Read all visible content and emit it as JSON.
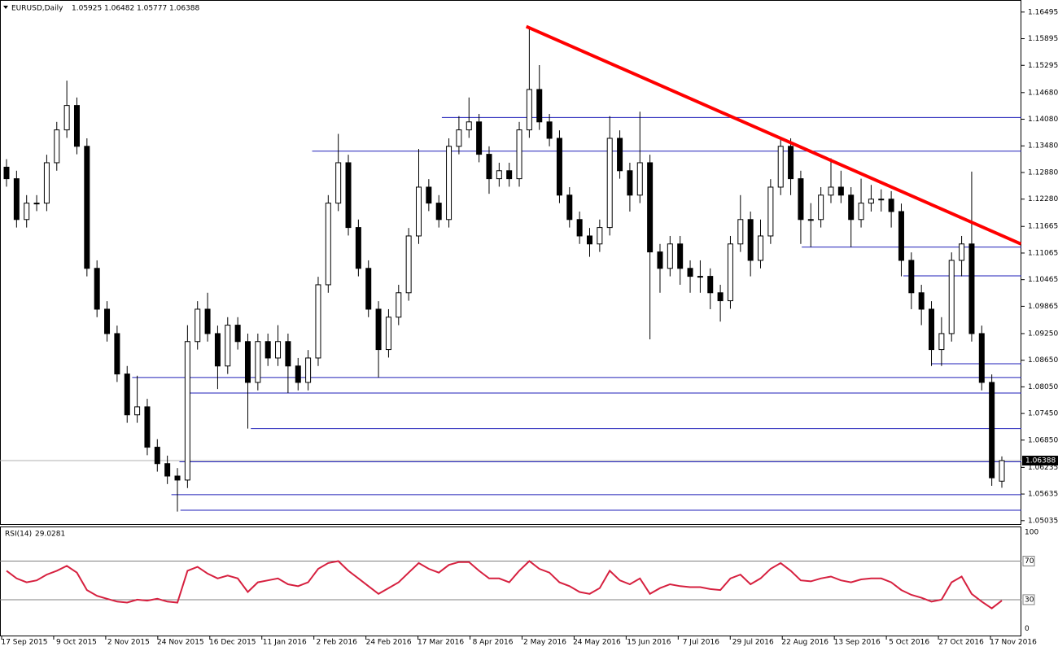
{
  "chart_data": {
    "type": "candlestick",
    "symbol": "EURUSD,Daily",
    "open": [
      1.13,
      1.1274,
      1.1182,
      1.1219,
      1.1219,
      1.131,
      1.1384,
      1.1439,
      1.1347,
      1.1072,
      1.098,
      1.0925,
      1.0834,
      1.0742,
      1.076,
      1.0669,
      1.0632,
      1.0604,
      1.0595,
      1.0907,
      1.098,
      1.0925,
      1.0852,
      1.0944,
      1.0907,
      1.0815,
      1.0907,
      1.087,
      1.0907,
      1.0852,
      1.0815,
      1.087,
      1.1035,
      1.1219,
      1.131,
      1.1164,
      1.1072,
      1.098,
      1.0889,
      1.0962,
      1.1017,
      1.1145,
      1.1255,
      1.1219,
      1.1182,
      1.1347,
      1.1384,
      1.1402,
      1.1329,
      1.1274,
      1.1292,
      1.1274,
      1.1384,
      1.1475,
      1.1402,
      1.1365,
      1.1237,
      1.1182,
      1.1145,
      1.1127,
      1.1164,
      1.1365,
      1.1292,
      1.1237,
      1.131,
      1.1109,
      1.1072,
      1.1127,
      1.1072,
      1.1054,
      1.1054,
      1.1017,
      1.0999,
      1.1127,
      1.1182,
      1.109,
      1.1145,
      1.1255,
      1.1347,
      1.1274,
      1.1182,
      1.1182,
      1.1237,
      1.1255,
      1.1237,
      1.1182,
      1.1219,
      1.1228,
      1.1228,
      1.12,
      1.109,
      1.1017,
      1.098,
      1.0889,
      1.0925,
      1.109,
      1.1127,
      1.0925,
      1.0815,
      1.05925
    ],
    "high": [
      1.1318,
      1.1292,
      1.1237,
      1.1237,
      1.1328,
      1.1402,
      1.1495,
      1.1457,
      1.1365,
      1.109,
      1.0998,
      1.0943,
      1.0852,
      1.083,
      1.0778,
      1.0687,
      1.065,
      1.0622,
      1.0944,
      1.0998,
      1.1017,
      1.0943,
      1.0962,
      1.0962,
      1.0925,
      1.0925,
      1.0925,
      1.0944,
      1.0925,
      1.087,
      1.0888,
      1.1053,
      1.1237,
      1.1375,
      1.1328,
      1.1182,
      1.109,
      1.0998,
      1.098,
      1.1035,
      1.1163,
      1.1341,
      1.1273,
      1.1237,
      1.1365,
      1.1415,
      1.1457,
      1.142,
      1.1347,
      1.131,
      1.131,
      1.1402,
      1.1617,
      1.153,
      1.142,
      1.1383,
      1.1255,
      1.12,
      1.1163,
      1.1182,
      1.1415,
      1.1383,
      1.131,
      1.1425,
      1.1328,
      1.1127,
      1.1145,
      1.1145,
      1.109,
      1.109,
      1.1072,
      1.1035,
      1.1145,
      1.1237,
      1.12,
      1.1182,
      1.1273,
      1.1365,
      1.1365,
      1.1292,
      1.1219,
      1.1255,
      1.132,
      1.1292,
      1.1255,
      1.1274,
      1.126,
      1.125,
      1.1246,
      1.1218,
      1.1108,
      1.1035,
      1.0998,
      1.0962,
      1.1108,
      1.1145,
      1.129,
      1.0943,
      1.0833,
      1.06482
    ],
    "low": [
      1.1256,
      1.1164,
      1.1164,
      1.1201,
      1.1201,
      1.1292,
      1.1366,
      1.1329,
      1.1054,
      1.0962,
      1.0907,
      1.0816,
      1.0724,
      1.0724,
      1.0651,
      1.0614,
      1.0586,
      1.0524,
      1.0577,
      1.0889,
      1.0907,
      1.08,
      1.0834,
      1.0889,
      1.0711,
      1.0797,
      1.0852,
      1.0852,
      1.0791,
      1.0797,
      1.0797,
      1.0852,
      1.1017,
      1.1201,
      1.1146,
      1.1054,
      1.0962,
      1.0826,
      1.0871,
      1.0944,
      1.0999,
      1.1127,
      1.1201,
      1.1164,
      1.1164,
      1.1329,
      1.1366,
      1.1311,
      1.124,
      1.1256,
      1.1256,
      1.1256,
      1.1366,
      1.1384,
      1.1347,
      1.1219,
      1.1164,
      1.1127,
      1.1098,
      1.1109,
      1.1146,
      1.1274,
      1.12,
      1.1219,
      1.0912,
      1.1017,
      1.1054,
      1.1035,
      1.1017,
      1.1017,
      1.098,
      1.0952,
      1.0981,
      1.1109,
      1.1054,
      1.1072,
      1.1127,
      1.1237,
      1.1237,
      1.1127,
      1.112,
      1.1164,
      1.1219,
      1.1219,
      1.112,
      1.1164,
      1.12,
      1.12,
      1.1164,
      1.1054,
      1.098,
      1.0944,
      1.0852,
      1.0852,
      1.0907,
      1.1054,
      1.0907,
      1.0797,
      1.0582,
      1.05777
    ],
    "close": [
      1.1274,
      1.1182,
      1.1219,
      1.1219,
      1.131,
      1.1384,
      1.1439,
      1.1347,
      1.1072,
      1.098,
      1.0925,
      1.0834,
      1.0742,
      1.076,
      1.0669,
      1.0632,
      1.0604,
      1.0595,
      1.0907,
      1.098,
      1.0925,
      1.0852,
      1.0944,
      1.0907,
      1.0815,
      1.0907,
      1.087,
      1.0907,
      1.0852,
      1.0815,
      1.087,
      1.1035,
      1.1219,
      1.131,
      1.1164,
      1.1072,
      1.098,
      1.0889,
      1.0962,
      1.1017,
      1.1145,
      1.1255,
      1.1219,
      1.1182,
      1.1347,
      1.1384,
      1.1402,
      1.1329,
      1.1274,
      1.1292,
      1.1274,
      1.1384,
      1.1475,
      1.1402,
      1.1365,
      1.1237,
      1.1182,
      1.1145,
      1.1127,
      1.1164,
      1.1365,
      1.1292,
      1.1237,
      1.131,
      1.1109,
      1.1072,
      1.1127,
      1.1072,
      1.1054,
      1.1054,
      1.1017,
      1.0999,
      1.1127,
      1.1182,
      1.109,
      1.1145,
      1.1255,
      1.1347,
      1.1274,
      1.1182,
      1.1182,
      1.1237,
      1.1255,
      1.1237,
      1.1182,
      1.1219,
      1.1228,
      1.1228,
      1.12,
      1.109,
      1.1017,
      1.098,
      1.0889,
      1.0925,
      1.109,
      1.1127,
      1.0925,
      1.0815,
      1.06,
      1.06388
    ],
    "bull_color": "#ffffff",
    "bear_color": "#000000",
    "wick_color": "#000000",
    "ylim": [
      1.0494,
      1.1673
    ],
    "yticks": [
      1.16495,
      1.15895,
      1.15295,
      {
        "value": 1.1468,
        "label": "1.14680"
      },
      {
        "value": 1.1408,
        "label": "1.14080"
      },
      {
        "value": 1.1348,
        "label": "1.13480"
      },
      {
        "value": 1.1288,
        "label": "1.12880"
      },
      {
        "value": 1.1228,
        "label": "1.12280"
      },
      1.11665,
      1.11065,
      1.10465,
      1.09865,
      {
        "value": 1.0925,
        "label": "1.09250"
      },
      {
        "value": 1.0865,
        "label": "1.08650"
      },
      {
        "value": 1.0805,
        "label": "1.08050"
      },
      {
        "value": 1.0745,
        "label": "1.07450"
      },
      {
        "value": 1.0685,
        "label": "1.06850"
      },
      1.06235,
      1.05635,
      1.05035
    ],
    "hline_color": "#1f1fb8",
    "hlines": [
      {
        "price": 1.1412,
        "from": 43.3
      },
      {
        "price": 1.1336,
        "from": 30.4
      },
      {
        "price": 1.112,
        "from": 79.1
      },
      {
        "price": 1.1055,
        "from": 89.2
      },
      {
        "price": 1.0857,
        "from": 92.0
      },
      {
        "price": 1.0826,
        "from": 12.5
      },
      {
        "price": 1.0791,
        "from": 18.1
      },
      {
        "price": 1.0711,
        "from": 24.3
      },
      {
        "price": 1.0636,
        "from": 17.2
      },
      {
        "price": 1.0562,
        "from": 16.4
      },
      {
        "price": 1.0527,
        "from": 17.3
      }
    ],
    "trendline": {
      "color": "#ff0000",
      "x": [
        51.7,
        100.9
      ],
      "y": [
        1.1617,
        1.1127
      ]
    },
    "xtick_labels": [
      "17 Sep 2015",
      "9 Oct 2015",
      "2 Nov 2015",
      "24 Nov 2015",
      "16 Dec 2015",
      "11 Jan 2016",
      "2 Feb 2016",
      "24 Feb 2016",
      "17 Mar 2016",
      "8 Apr 2016",
      "2 May 2016",
      "24 May 2016",
      "15 Jun 2016",
      "7 Jul 2016",
      "29 Jul 2016",
      "22 Aug 2016",
      "13 Sep 2016",
      "5 Oct 2016",
      "27 Oct 2016",
      "17 Nov 2016"
    ],
    "rsi": {
      "label": "RSI(14)",
      "color": "#d6203f",
      "ylim": [
        -8,
        105
      ],
      "yticks": [
        100,
        70,
        30,
        0
      ],
      "levels": [
        70,
        30
      ],
      "values": [
        60,
        52,
        48,
        50,
        56,
        60,
        65,
        58,
        40,
        34,
        31,
        28,
        27,
        30,
        29,
        31,
        28,
        27,
        60,
        64,
        57,
        52,
        55,
        52,
        38,
        48,
        50,
        52,
        46,
        44,
        48,
        62,
        68,
        70,
        60,
        52,
        44,
        36,
        42,
        48,
        58,
        68,
        62,
        58,
        66,
        69,
        69,
        60,
        52,
        52,
        48,
        60,
        70,
        62,
        58,
        48,
        44,
        38,
        36,
        42,
        60,
        50,
        46,
        52,
        36,
        42,
        46,
        44,
        43,
        43,
        41,
        40,
        52,
        56,
        46,
        52,
        62,
        68,
        60,
        50,
        49,
        52,
        54,
        50,
        48,
        51,
        52,
        52,
        48,
        40,
        35,
        32,
        28,
        30,
        48,
        54,
        36,
        28,
        21,
        29.0281
      ]
    }
  }
}
